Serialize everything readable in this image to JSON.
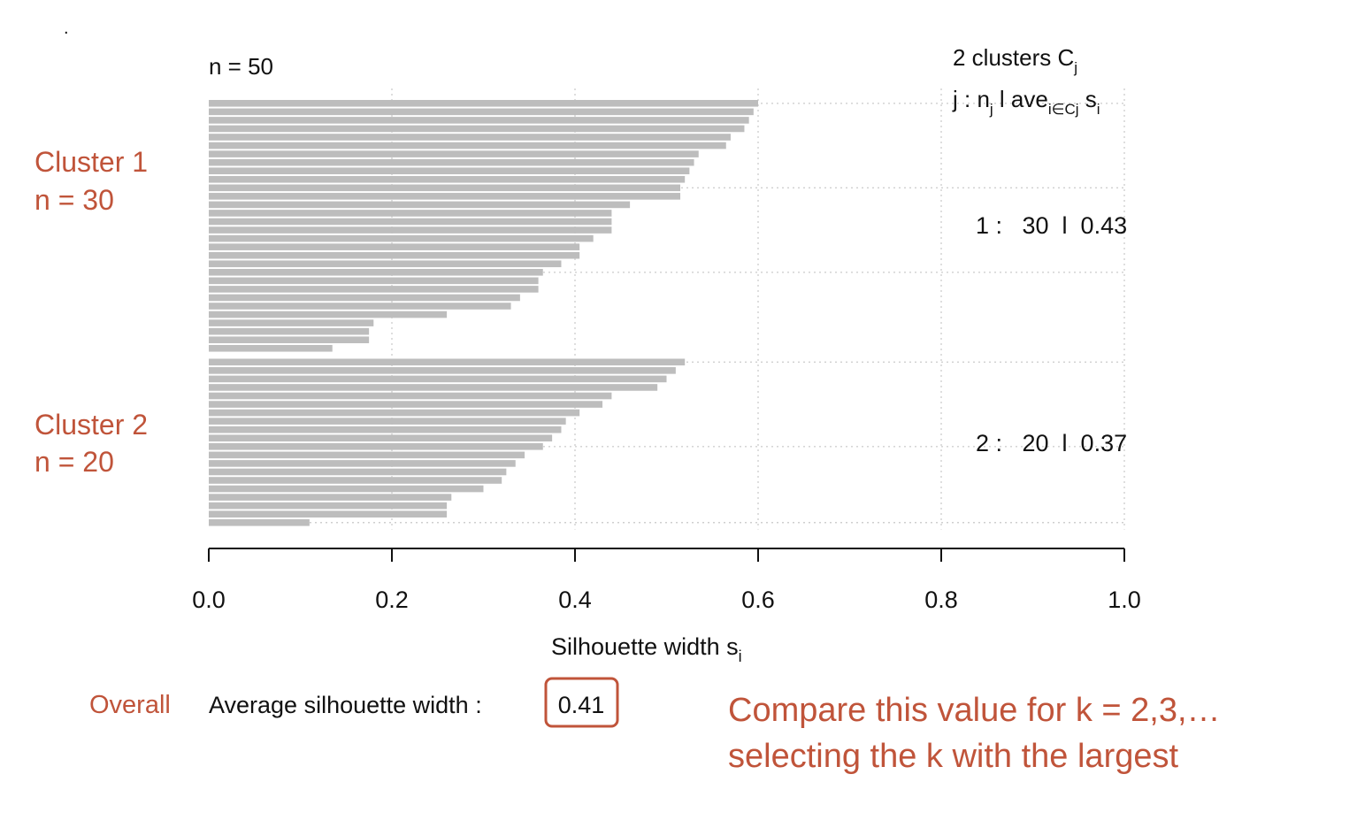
{
  "chart_data": {
    "type": "bar",
    "orientation": "horizontal",
    "n_label": "n = 50",
    "header": {
      "line1_main": "2 clusters  C",
      "line1_sub": "j",
      "line2_j": "j :  n",
      "line2_j_sub": "j",
      "line2_mid": " l ave",
      "line2_ave_sub": "i∈Cj",
      "line2_s": "  s",
      "line2_s_sub": "i"
    },
    "xlabel_main": "Silhouette width s",
    "xlabel_sub": "i",
    "xlim": [
      0,
      1
    ],
    "xticks": [
      "0.0",
      "0.2",
      "0.4",
      "0.6",
      "0.8",
      "1.0"
    ],
    "grid": true,
    "bar_color": "#bdbdbd",
    "clusters": [
      {
        "values": [
          0.6,
          0.595,
          0.59,
          0.585,
          0.57,
          0.565,
          0.535,
          0.53,
          0.525,
          0.52,
          0.515,
          0.515,
          0.46,
          0.44,
          0.44,
          0.44,
          0.42,
          0.405,
          0.405,
          0.385,
          0.365,
          0.36,
          0.36,
          0.34,
          0.33,
          0.26,
          0.18,
          0.175,
          0.175,
          0.135
        ],
        "label_stats": "1 :   30  l  0.43"
      },
      {
        "values": [
          0.52,
          0.51,
          0.5,
          0.49,
          0.44,
          0.43,
          0.405,
          0.39,
          0.385,
          0.375,
          0.365,
          0.345,
          0.335,
          0.325,
          0.32,
          0.3,
          0.265,
          0.26,
          0.26,
          0.11
        ],
        "label_stats": "2 :   20  l  0.37"
      }
    ]
  },
  "annotations": {
    "cluster1_line1": "Cluster 1",
    "cluster1_line2": "n = 30",
    "cluster2_line1": "Cluster 2",
    "cluster2_line2": "n = 20",
    "overall_label": "Overall",
    "avg_text": "Average silhouette width :",
    "avg_value": "0.41",
    "compare_line1": "Compare this value for k = 2,3,…",
    "compare_line2": "selecting the k with the largest",
    "accent_color": "#c0543a"
  }
}
